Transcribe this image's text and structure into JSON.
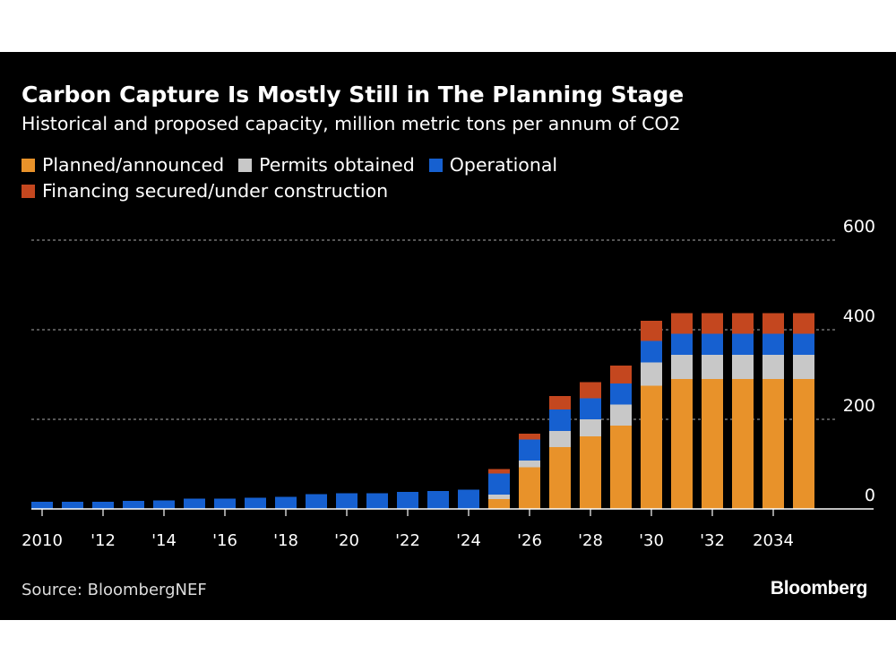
{
  "title": "Carbon Capture Is Mostly Still in The Planning Stage",
  "subtitle": "Historical and proposed capacity, million metric tons per annum of CO2",
  "source": "Source: BloombergNEF",
  "logo": "Bloomberg",
  "chart_data": {
    "type": "bar",
    "stacked": true,
    "title": "Carbon Capture Is Mostly Still in The Planning Stage",
    "subtitle": "Historical and proposed capacity, million metric tons per annum of CO2",
    "categories": [
      "2010",
      "2011",
      "2012",
      "2013",
      "2014",
      "2015",
      "2016",
      "2017",
      "2018",
      "2019",
      "2020",
      "2021",
      "2022",
      "2023",
      "2024",
      "2025",
      "2026",
      "2027",
      "2028",
      "2029",
      "2030",
      "2031",
      "2032",
      "2033",
      "2034",
      "2035"
    ],
    "x_tick_labels": {
      "0": "2010",
      "2": "'12",
      "4": "'14",
      "6": "'16",
      "8": "'18",
      "10": "'20",
      "12": "'22",
      "14": "'24",
      "16": "'26",
      "18": "'28",
      "20": "'30",
      "22": "'32",
      "24": "2034"
    },
    "series": [
      {
        "name": "Planned/announced",
        "color": "#e8922a",
        "values": [
          0,
          0,
          0,
          0,
          0,
          0,
          0,
          0,
          0,
          0,
          0,
          0,
          0,
          0,
          0,
          22,
          93,
          138,
          162,
          186,
          275,
          290,
          290,
          290,
          290,
          290
        ]
      },
      {
        "name": "Permits obtained",
        "color": "#c8c8c8",
        "values": [
          0,
          0,
          0,
          0,
          0,
          0,
          0,
          0,
          0,
          0,
          0,
          0,
          0,
          0,
          0,
          10,
          15,
          36,
          38,
          47,
          52,
          54,
          54,
          54,
          54,
          54
        ]
      },
      {
        "name": "Operational",
        "color": "#1660d0",
        "values": [
          16,
          16,
          16,
          18,
          19,
          23,
          23,
          25,
          27,
          33,
          35,
          35,
          38,
          40,
          43,
          47,
          47,
          48,
          47,
          47,
          48,
          47,
          47,
          47,
          47,
          47
        ]
      },
      {
        "name": "Financing secured/under construction",
        "color": "#c4471f",
        "values": [
          0,
          0,
          0,
          0,
          0,
          0,
          0,
          0,
          0,
          0,
          0,
          0,
          0,
          0,
          0,
          10,
          13,
          30,
          36,
          40,
          45,
          46,
          46,
          46,
          46,
          46
        ]
      }
    ],
    "legend_order": [
      0,
      1,
      2,
      3
    ],
    "yticks": [
      "0",
      "200",
      "400",
      "600"
    ],
    "ylim": [
      0,
      600
    ],
    "y_axis_position": "right",
    "grid": true,
    "legend_position": "top-left",
    "xlabel": "",
    "ylabel": ""
  }
}
